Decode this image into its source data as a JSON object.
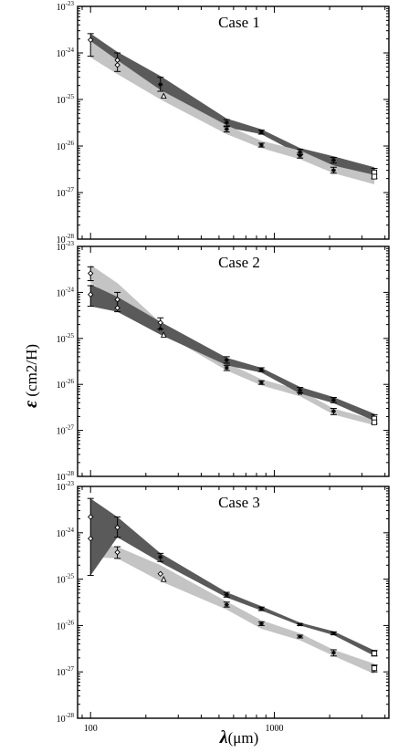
{
  "chart_data": {
    "type": "area",
    "xscale": "log",
    "yscale": "log",
    "xlim": [
      85,
      4200
    ],
    "ylim": [
      1e-28,
      1e-23
    ],
    "x_ticks": [
      100,
      1000
    ],
    "x_tick_labels": [
      "100",
      "1000"
    ],
    "xlabel_symbol": "λ",
    "xlabel_text": "(μm)",
    "ylabel_symbol": "ε",
    "ylabel_text": " (cm2/H)",
    "y_tick_labels": [
      "10",
      "10",
      "10",
      "10",
      "10",
      "10"
    ],
    "y_tick_exponents": [
      "-28",
      "-27",
      "-26",
      "-25",
      "-24",
      "-23"
    ],
    "panels": [
      {
        "title": "Case 1",
        "bands": [
          {
            "name": "model band (dark)",
            "color": "#5a5a5a",
            "x": [
              100,
              140,
              240,
              550,
              850,
              1380,
              2100,
              3500
            ],
            "upper": [
              2.6e-24,
              1.05e-24,
              3.2e-25,
              3.9e-26,
              2.3e-26,
              9e-27,
              6e-27,
              3.5e-27
            ],
            "lower": [
              1e-24,
              6e-25,
              1.6e-25,
              2.5e-26,
              1.8e-26,
              6.5e-27,
              3.8e-27,
              2.2e-27
            ]
          },
          {
            "name": "model band (light)",
            "color": "#c4c4c4",
            "x": [
              100,
              140,
              240,
              550,
              850,
              1380,
              2100,
              3500
            ],
            "upper": [
              1.8e-24,
              7e-25,
              1.6e-25,
              2.8e-26,
              1.3e-26,
              8e-27,
              3.8e-27,
              2.4e-27
            ],
            "lower": [
              8e-25,
              3.5e-25,
              1e-25,
              1.8e-26,
              9e-27,
              5.2e-27,
              2.6e-27,
              1.5e-27
            ]
          }
        ],
        "points": [
          {
            "x": 100,
            "y": 1.9e-24,
            "err": [
              8.5e-25,
              2.6e-24
            ],
            "marker": "diamond"
          },
          {
            "x": 140,
            "y": 7e-25,
            "err": [
              4e-25,
              1e-24
            ],
            "marker": "diamond"
          },
          {
            "x": 140,
            "y": 5.5e-25,
            "err": null,
            "marker": "diamond"
          },
          {
            "x": 240,
            "y": 2.1e-25,
            "err": [
              1.5e-25,
              3e-25
            ],
            "marker": "star"
          },
          {
            "x": 250,
            "y": 1.2e-25,
            "err": null,
            "marker": "triangle"
          },
          {
            "x": 550,
            "y": 3.2e-26,
            "err": [
              2.7e-26,
              3.7e-26
            ],
            "marker": "star"
          },
          {
            "x": 550,
            "y": 2.3e-26,
            "err": [
              2e-26,
              2.6e-26
            ],
            "marker": "star"
          },
          {
            "x": 850,
            "y": 2e-26,
            "err": [
              1.8e-26,
              2.2e-26
            ],
            "marker": "star"
          },
          {
            "x": 850,
            "y": 1.05e-26,
            "err": [
              9.5e-27,
              1.15e-26
            ],
            "marker": "star"
          },
          {
            "x": 1380,
            "y": 7.5e-27,
            "err": [
              6.5e-27,
              8.5e-27
            ],
            "marker": "star"
          },
          {
            "x": 1380,
            "y": 6.2e-27,
            "err": [
              5.5e-27,
              7e-27
            ],
            "marker": "star"
          },
          {
            "x": 2100,
            "y": 5e-27,
            "err": [
              4.3e-27,
              5.7e-27
            ],
            "marker": "star"
          },
          {
            "x": 2100,
            "y": 3e-27,
            "err": [
              2.6e-27,
              3.5e-27
            ],
            "marker": "star"
          },
          {
            "x": 3500,
            "y": 2.7e-27,
            "err": [
              2e-27,
              3.3e-27
            ],
            "marker": "square"
          },
          {
            "x": 3500,
            "y": 2.2e-27,
            "err": null,
            "marker": "square"
          }
        ]
      },
      {
        "title": "Case 2",
        "bands": [
          {
            "name": "model band (light)",
            "color": "#c4c4c4",
            "x": [
              100,
              140,
              240,
              550,
              850,
              1380,
              2100,
              3500
            ],
            "upper": [
              4e-24,
              1.6e-24,
              2.2e-25,
              3e-26,
              1.3e-26,
              7.5e-27,
              3e-27,
              1.7e-27
            ],
            "lower": [
              1.6e-24,
              7e-25,
              1.4e-25,
              2e-26,
              9.5e-27,
              5.5e-27,
              2.2e-27,
              1.3e-27
            ]
          },
          {
            "name": "model band (dark)",
            "color": "#5a5a5a",
            "x": [
              100,
              140,
              240,
              550,
              850,
              1380,
              2100,
              3500
            ],
            "upper": [
              1.5e-24,
              8e-25,
              2.3e-25,
              3.8e-26,
              2.3e-26,
              8.8e-27,
              5.3e-27,
              2.3e-27
            ],
            "lower": [
              5e-25,
              3.8e-25,
              1.2e-25,
              2.6e-26,
              1.8e-26,
              6.3e-27,
              3.9e-27,
              1.6e-27
            ]
          }
        ],
        "points": [
          {
            "x": 100,
            "y": 2.6e-24,
            "err": [
              1.8e-24,
              3.6e-24
            ],
            "marker": "diamond"
          },
          {
            "x": 100,
            "y": 9e-25,
            "err": [
              5e-25,
              1.4e-24
            ],
            "marker": "diamond"
          },
          {
            "x": 140,
            "y": 7e-25,
            "err": [
              3.8e-25,
              1e-24
            ],
            "marker": "diamond"
          },
          {
            "x": 140,
            "y": 4.6e-25,
            "err": null,
            "marker": "diamond"
          },
          {
            "x": 240,
            "y": 2.2e-25,
            "err": [
              1.6e-25,
              2.8e-25
            ],
            "marker": "diamond"
          },
          {
            "x": 240,
            "y": 1.6e-25,
            "err": null,
            "marker": "star"
          },
          {
            "x": 250,
            "y": 1.2e-25,
            "err": null,
            "marker": "triangle"
          },
          {
            "x": 550,
            "y": 3.4e-26,
            "err": [
              2.9e-26,
              4e-26
            ],
            "marker": "star"
          },
          {
            "x": 550,
            "y": 2.3e-26,
            "err": [
              2e-26,
              2.6e-26
            ],
            "marker": "star"
          },
          {
            "x": 850,
            "y": 2.1e-26,
            "err": [
              1.9e-26,
              2.3e-26
            ],
            "marker": "star"
          },
          {
            "x": 850,
            "y": 1.1e-26,
            "err": [
              1e-26,
              1.2e-26
            ],
            "marker": "star"
          },
          {
            "x": 1380,
            "y": 7.6e-27,
            "err": [
              6.6e-27,
              8.6e-27
            ],
            "marker": "star"
          },
          {
            "x": 1380,
            "y": 6.4e-27,
            "err": null,
            "marker": "star"
          },
          {
            "x": 2100,
            "y": 4.6e-27,
            "err": [
              4e-27,
              5.2e-27
            ],
            "marker": "star"
          },
          {
            "x": 2100,
            "y": 2.6e-27,
            "err": [
              2.2e-27,
              3e-27
            ],
            "marker": "star"
          },
          {
            "x": 3500,
            "y": 1.8e-27,
            "err": [
              1.4e-27,
              2.2e-27
            ],
            "marker": "square"
          },
          {
            "x": 3500,
            "y": 1.5e-27,
            "err": null,
            "marker": "square"
          }
        ]
      },
      {
        "title": "Case 3",
        "bands": [
          {
            "name": "model band (light)",
            "color": "#c4c4c4",
            "x": [
              100,
              140,
              240,
              550,
              850,
              1380,
              2100,
              3500
            ],
            "upper": [
              6e-25,
              5e-25,
              2e-25,
              3.3e-26,
              1.3e-26,
              6.8e-27,
              3e-27,
              1.5e-27
            ],
            "lower": [
              3e-25,
              2.8e-25,
              9e-26,
              2.2e-26,
              8.5e-27,
              4.8e-27,
              2.2e-27,
              9e-28
            ]
          },
          {
            "name": "model band (dark)",
            "color": "#5a5a5a",
            "x": [
              100,
              140,
              240,
              550,
              850,
              1380,
              2100,
              3500
            ],
            "upper": [
              5.5e-24,
              2.2e-24,
              3.6e-25,
              5.2e-26,
              2.6e-26,
              1.15e-26,
              7.5e-27,
              2.9e-27
            ],
            "lower": [
              1.2e-25,
              8e-25,
              2.3e-25,
              4e-26,
              2.1e-26,
              1e-26,
              6.2e-27,
              2.2e-27
            ]
          }
        ],
        "points": [
          {
            "x": 100,
            "y": 2.2e-24,
            "err": [
              1.2e-25,
              5.5e-24
            ],
            "marker": "diamond"
          },
          {
            "x": 100,
            "y": 7.5e-25,
            "err": null,
            "marker": "diamond"
          },
          {
            "x": 140,
            "y": 1.3e-24,
            "err": [
              8e-25,
              2.2e-24
            ],
            "marker": "diamond"
          },
          {
            "x": 140,
            "y": 3.8e-25,
            "err": [
              2.8e-25,
              5e-25
            ],
            "marker": "diamond"
          },
          {
            "x": 240,
            "y": 3e-25,
            "err": [
              2.4e-25,
              3.6e-25
            ],
            "marker": "star"
          },
          {
            "x": 240,
            "y": 1.3e-25,
            "err": null,
            "marker": "diamond"
          },
          {
            "x": 250,
            "y": 1e-25,
            "err": null,
            "marker": "triangle"
          },
          {
            "x": 550,
            "y": 4.6e-26,
            "err": [
              4.1e-26,
              5.2e-26
            ],
            "marker": "star"
          },
          {
            "x": 550,
            "y": 2.8e-26,
            "err": [
              2.5e-26,
              3.2e-26
            ],
            "marker": "star"
          },
          {
            "x": 850,
            "y": 2.3e-26,
            "err": [
              2.1e-26,
              2.5e-26
            ],
            "marker": "star"
          },
          {
            "x": 850,
            "y": 1.1e-26,
            "err": [
              1e-26,
              1.2e-26
            ],
            "marker": "star"
          },
          {
            "x": 1380,
            "y": 1.05e-26,
            "err": [
              1e-26,
              1.1e-26
            ],
            "marker": "star"
          },
          {
            "x": 1380,
            "y": 5.8e-27,
            "err": [
              5.4e-27,
              6.2e-27
            ],
            "marker": "star"
          },
          {
            "x": 2100,
            "y": 6.8e-27,
            "err": [
              6.3e-27,
              7.3e-27
            ],
            "marker": "star"
          },
          {
            "x": 2100,
            "y": 2.6e-27,
            "err": [
              2.2e-27,
              3e-27
            ],
            "marker": "star"
          },
          {
            "x": 3500,
            "y": 2.5e-27,
            "err": [
              2.2e-27,
              2.9e-27
            ],
            "marker": "square"
          },
          {
            "x": 3500,
            "y": 1.2e-27,
            "err": [
              1e-27,
              1.4e-27
            ],
            "marker": "square"
          }
        ]
      }
    ]
  }
}
